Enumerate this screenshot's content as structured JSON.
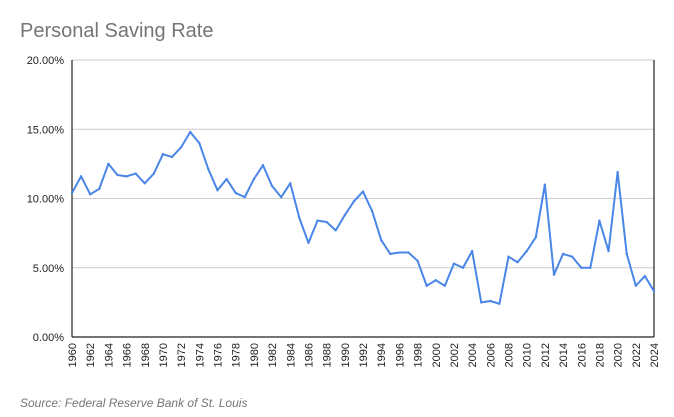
{
  "chart_data": {
    "type": "line",
    "title": "Personal Saving Rate",
    "source": "Source: Federal Reserve Bank of St. Louis",
    "x": [
      1960,
      1961,
      1962,
      1963,
      1964,
      1965,
      1966,
      1967,
      1968,
      1969,
      1970,
      1971,
      1972,
      1973,
      1974,
      1975,
      1976,
      1977,
      1978,
      1979,
      1980,
      1981,
      1982,
      1983,
      1984,
      1985,
      1986,
      1987,
      1988,
      1989,
      1990,
      1991,
      1992,
      1993,
      1994,
      1995,
      1996,
      1997,
      1998,
      1999,
      2000,
      2001,
      2002,
      2003,
      2004,
      2005,
      2006,
      2007,
      2008,
      2009,
      2010,
      2011,
      2012,
      2013,
      2014,
      2015,
      2016,
      2017,
      2018,
      2019,
      2020,
      2021,
      2022,
      2023,
      2024
    ],
    "series": [
      {
        "values": [
          10.4,
          11.6,
          10.3,
          10.7,
          12.5,
          11.7,
          11.6,
          11.8,
          11.1,
          11.8,
          13.2,
          13.0,
          13.7,
          14.8,
          14.0,
          12.1,
          10.6,
          11.4,
          10.4,
          10.1,
          11.4,
          12.4,
          10.9,
          10.1,
          11.1,
          8.6,
          6.8,
          8.4,
          8.3,
          7.7,
          8.8,
          9.8,
          10.5,
          9.1,
          7.0,
          6.0,
          6.1,
          6.1,
          5.5,
          3.7,
          4.1,
          3.7,
          5.3,
          5.0,
          6.2,
          2.5,
          2.6,
          2.4,
          5.8,
          5.4,
          6.2,
          7.2,
          11.0,
          4.5,
          6.0,
          5.8,
          5.0,
          5.0,
          8.4,
          6.2,
          11.9,
          6.0,
          3.7,
          4.4,
          3.3
        ],
        "color": "#4A86E8"
      }
    ],
    "y_ticks": [
      "0.00%",
      "5.00%",
      "10.00%",
      "15.00%",
      "20.00%"
    ],
    "x_ticks": [
      "1960",
      "1962",
      "1964",
      "1966",
      "1968",
      "1970",
      "1972",
      "1974",
      "1976",
      "1978",
      "1980",
      "1982",
      "1984",
      "1986",
      "1988",
      "1990",
      "1992",
      "1994",
      "1996",
      "1998",
      "2000",
      "2002",
      "2004",
      "2006",
      "2008",
      "2010",
      "2012",
      "2014",
      "2016",
      "2018",
      "2020",
      "2022",
      "2024"
    ],
    "ylim": [
      0,
      20
    ],
    "xlim": [
      1960,
      2024
    ],
    "grid": true
  }
}
